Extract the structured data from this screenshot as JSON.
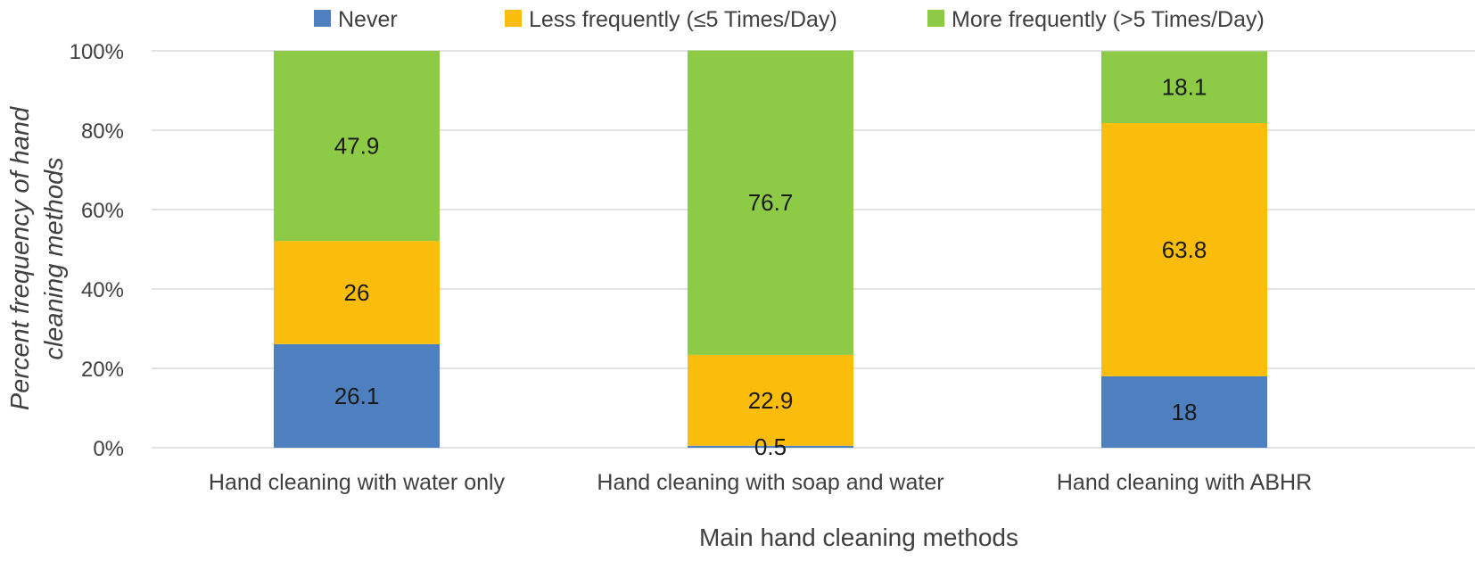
{
  "chart_data": {
    "type": "bar",
    "stacked": true,
    "categories": [
      "Hand cleaning with water only",
      "Hand cleaning with soap and water",
      "Hand cleaning with ABHR"
    ],
    "series": [
      {
        "name": "Never",
        "color": "#4e7fbe",
        "values": [
          26.1,
          0.5,
          18
        ],
        "labels": [
          "26.1",
          "0.5",
          "18"
        ]
      },
      {
        "name": "Less frequently (≤5 Times/Day)",
        "color": "#fbbd0b",
        "values": [
          26,
          22.9,
          63.8
        ],
        "labels": [
          "26",
          "22.9",
          "63.8"
        ]
      },
      {
        "name": "More frequently (>5 Times/Day)",
        "color": "#8dca45",
        "values": [
          47.9,
          76.7,
          18.1
        ],
        "labels": [
          "47.9",
          "76.7",
          "18.1"
        ]
      }
    ],
    "y_ticks": [
      "0%",
      "20%",
      "40%",
      "60%",
      "80%",
      "100%"
    ],
    "ylim": [
      0,
      100
    ],
    "xlabel": "Main hand cleaning methods",
    "ylabel_lines": [
      "Percent frequency of hand",
      "cleaning methods"
    ],
    "grid": true,
    "legend_position": "top"
  }
}
